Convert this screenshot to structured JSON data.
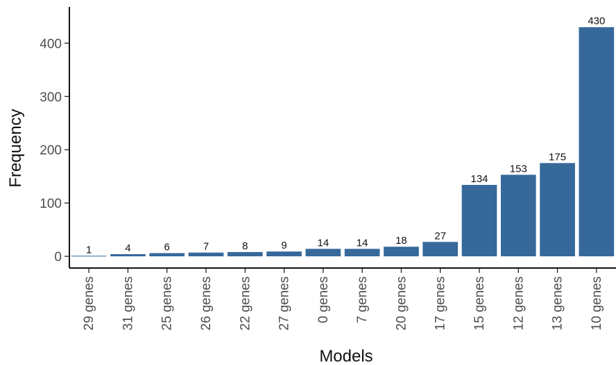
{
  "colors": {
    "bar": "#36689A",
    "axis": "#111111",
    "tick_text": "#4d4d4d"
  },
  "chart_data": {
    "type": "bar",
    "xlabel": "Models",
    "ylabel": "Frequency",
    "categories": [
      "29 genes",
      "31 genes",
      "25 genes",
      "26 genes",
      "22 genes",
      "27 genes",
      "0 genes",
      "7 genes",
      "20 genes",
      "17 genes",
      "15 genes",
      "12 genes",
      "13 genes",
      "10 genes"
    ],
    "values": [
      1,
      4,
      6,
      7,
      8,
      9,
      14,
      14,
      18,
      27,
      134,
      153,
      175,
      430
    ],
    "data_labels": [
      "1",
      "4",
      "6",
      "7",
      "8",
      "9",
      "14",
      "14",
      "18",
      "27",
      "134",
      "153",
      "175",
      "430"
    ],
    "yticks": [
      0,
      100,
      200,
      300,
      400
    ],
    "ytick_labels": [
      "0",
      "100",
      "200",
      "300",
      "400"
    ],
    "ylim": [
      -22,
      468
    ],
    "grid": false,
    "legend": "none"
  }
}
